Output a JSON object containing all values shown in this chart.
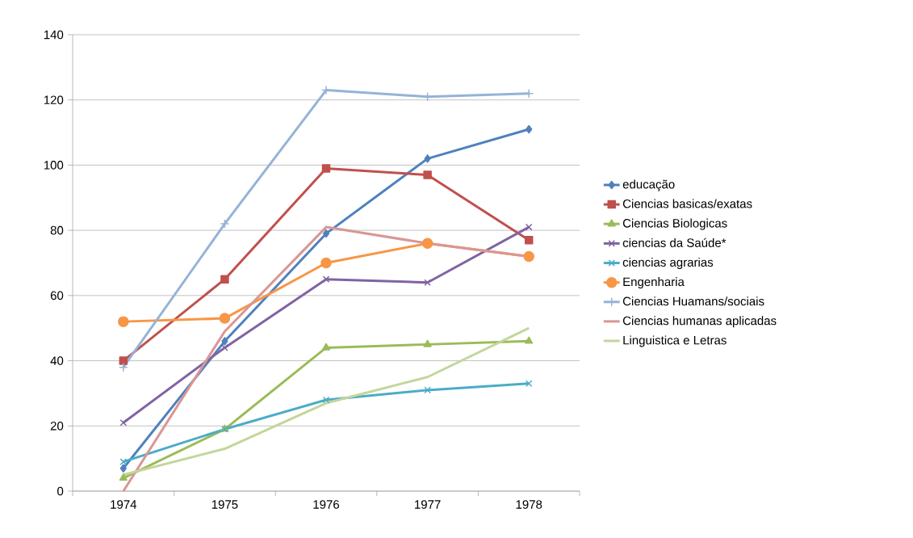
{
  "chart_data": {
    "type": "line",
    "categories": [
      "1974",
      "1975",
      "1976",
      "1977",
      "1978"
    ],
    "ylim": [
      0,
      140
    ],
    "yticks": [
      0,
      20,
      40,
      60,
      80,
      100,
      120,
      140
    ],
    "grid": "y",
    "legend": "right",
    "series": [
      {
        "name": "educação",
        "color": "#4f81bd",
        "marker": "diamond",
        "values": [
          7,
          46,
          79,
          102,
          111
        ]
      },
      {
        "name": "Ciencias basicas/exatas",
        "color": "#c0504d",
        "marker": "square",
        "values": [
          40,
          65,
          99,
          97,
          77
        ]
      },
      {
        "name": "Ciencias Biologicas",
        "color": "#9bbb59",
        "marker": "triangle",
        "values": [
          4,
          19,
          44,
          45,
          46
        ]
      },
      {
        "name": "ciencias da Saúde*",
        "color": "#8064a2",
        "marker": "cross",
        "values": [
          21,
          44,
          65,
          64,
          81
        ]
      },
      {
        "name": "ciencias agrarias",
        "color": "#4bacc6",
        "marker": "cross",
        "values": [
          9,
          19,
          28,
          31,
          33
        ]
      },
      {
        "name": "Engenharia",
        "color": "#f79646",
        "marker": "circle",
        "values": [
          52,
          53,
          70,
          76,
          72
        ]
      },
      {
        "name": "Ciencias Huamans/sociais",
        "color": "#95b3d7",
        "marker": "plus",
        "values": [
          38,
          82,
          123,
          121,
          122
        ]
      },
      {
        "name": "Ciencias humanas aplicadas",
        "color": "#d99694",
        "marker": "none",
        "values": [
          0,
          49,
          81,
          76,
          72
        ]
      },
      {
        "name": "Linguistica e Letras",
        "color": "#c3d69b",
        "marker": "none",
        "values": [
          5,
          13,
          27,
          35,
          50
        ]
      }
    ]
  }
}
